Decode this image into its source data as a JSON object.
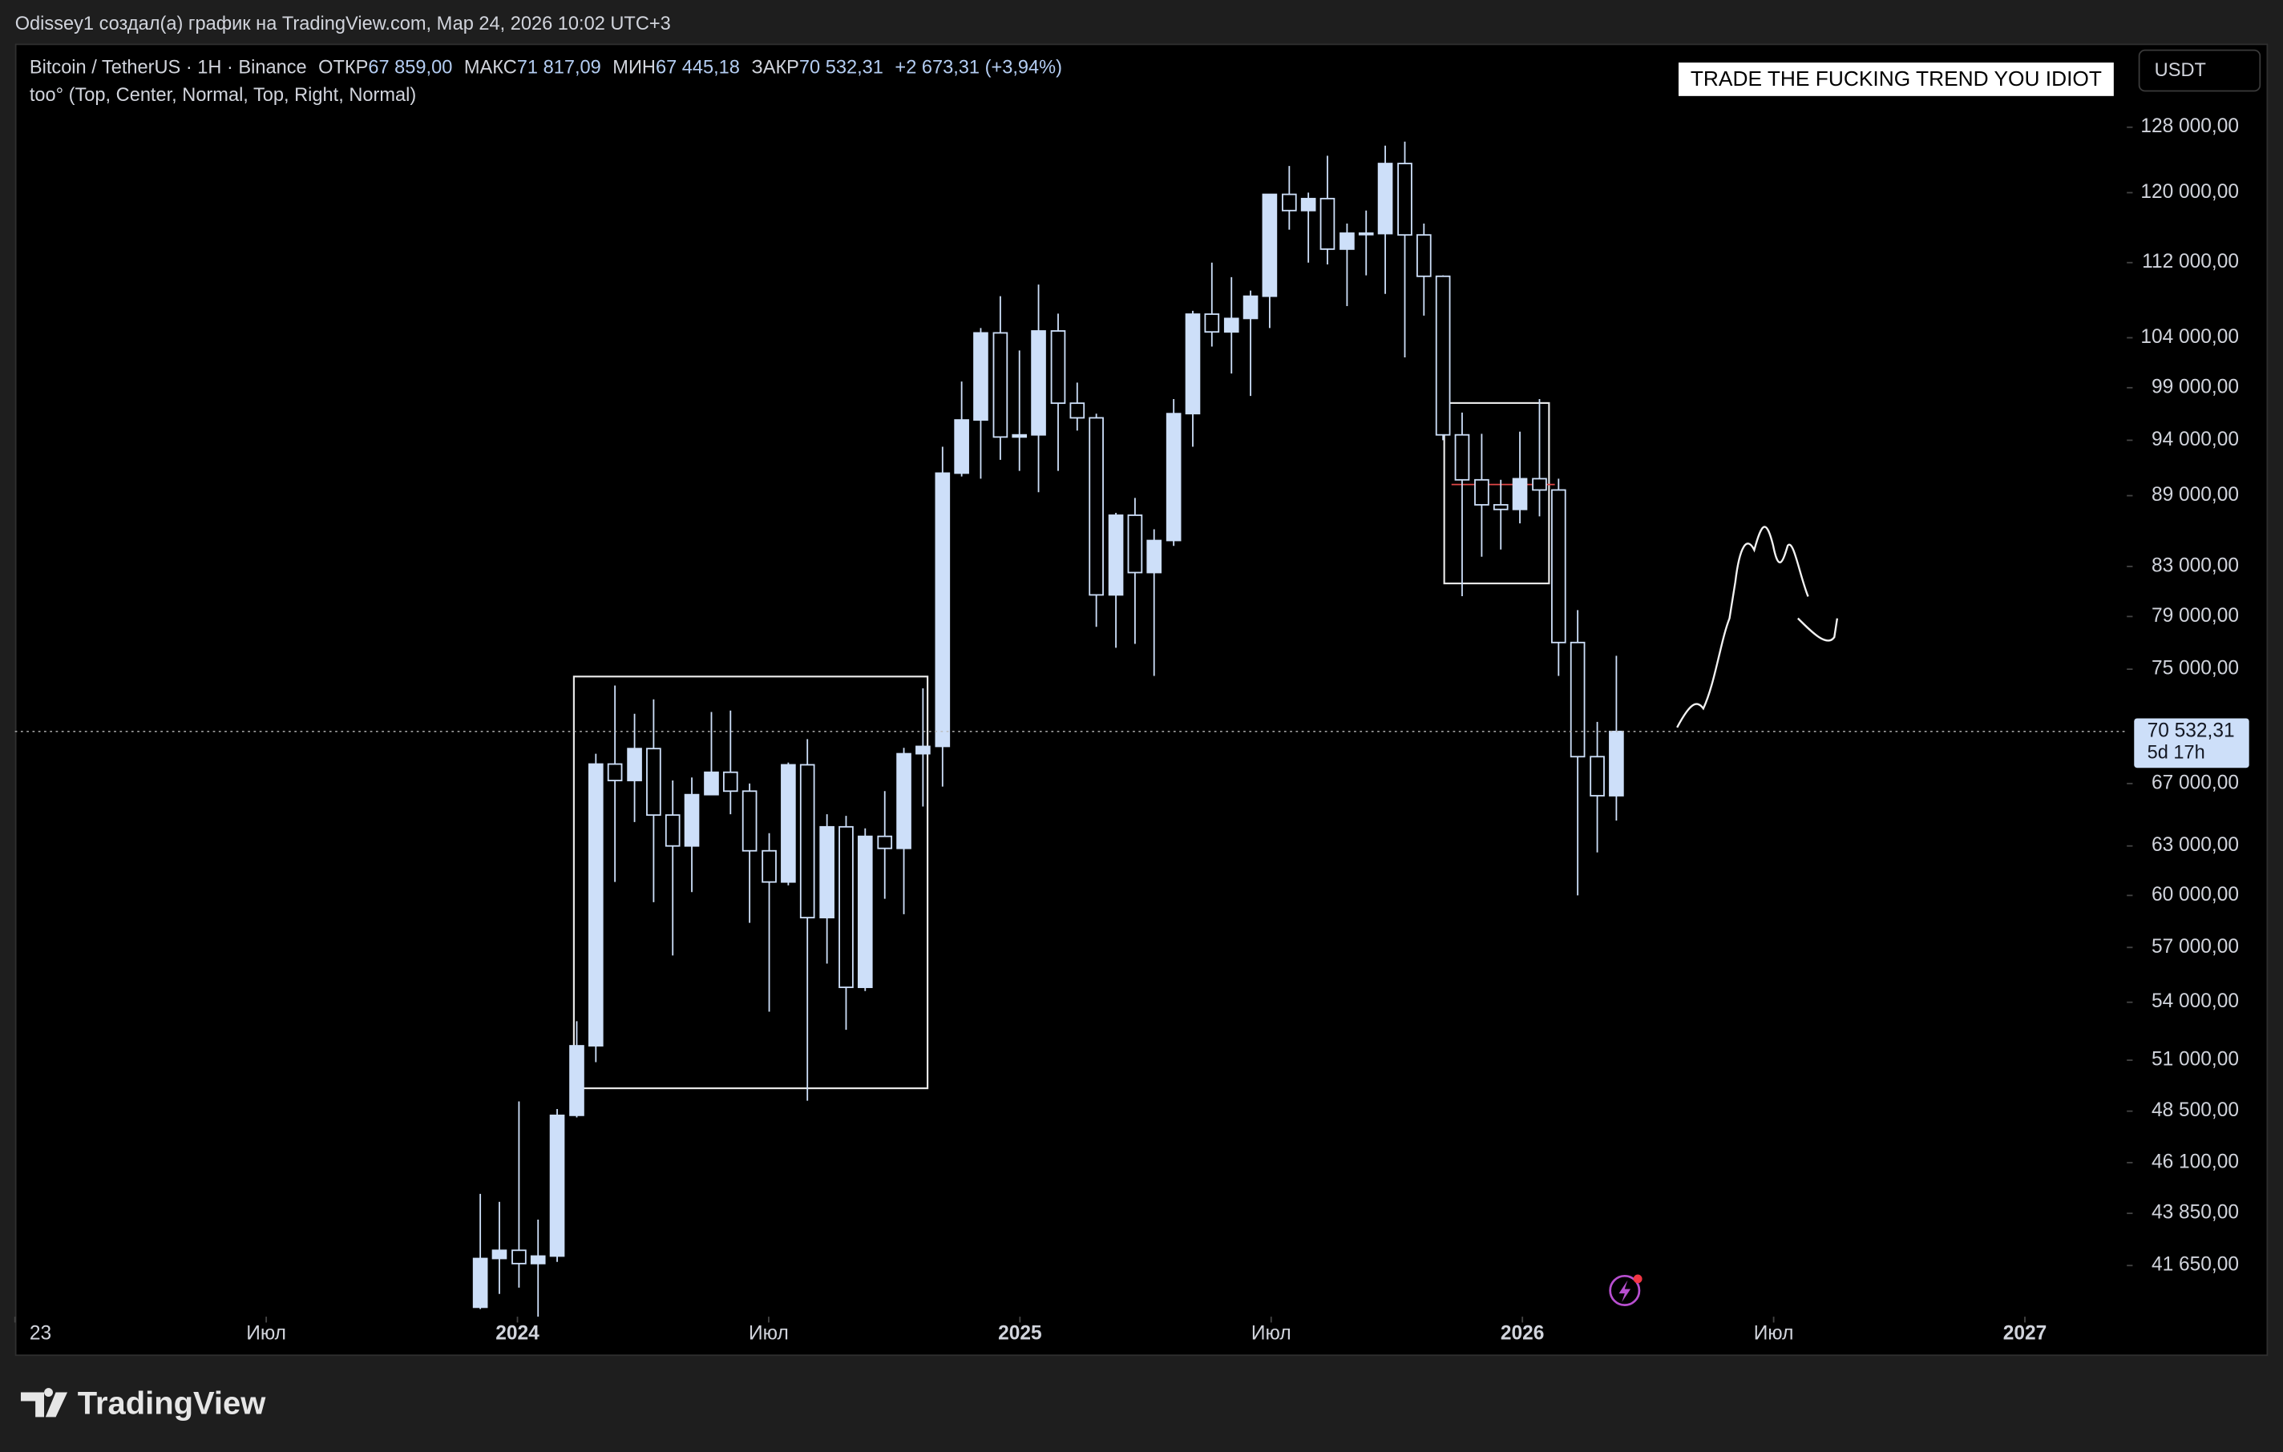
{
  "header": {
    "attribution": "Odissey1 создал(а) график на TradingView.com, Мар 24, 2026 10:02 UTC+3",
    "symbol": "Bitcoin / TetherUS · 1H · Binance",
    "ohlc": [
      {
        "label": "ОТКР",
        "value": "67 859,00"
      },
      {
        "label": "МАКС",
        "value": "71 817,09"
      },
      {
        "label": "МИН",
        "value": "67 445,18"
      },
      {
        "label": "ЗАКР",
        "value": "70 532,31"
      }
    ],
    "change": "+2 673,31 (+3,94%)",
    "indicator": "too° (Top, Center, Normal, Top, Right, Normal)",
    "banner": "TRADE THE FUCKING TREND YOU IDIOT",
    "currency": "USDT"
  },
  "chart_data": {
    "type": "candlestick",
    "color": "#cddff9",
    "log_scale": true,
    "x": [
      2023.926,
      2023.964,
      2024.003,
      2024.041,
      2024.079,
      2024.118,
      2024.156,
      2024.194,
      2024.233,
      2024.271,
      2024.309,
      2024.347,
      2024.386,
      2024.424,
      2024.462,
      2024.501,
      2024.539,
      2024.577,
      2024.616,
      2024.654,
      2024.692,
      2024.731,
      2024.769,
      2024.807,
      2024.846,
      2024.884,
      2024.922,
      2024.961,
      2024.999,
      2025.037,
      2025.076,
      2025.114,
      2025.152,
      2025.191,
      2025.229,
      2025.267,
      2025.306,
      2025.344,
      2025.382,
      2025.421,
      2025.459,
      2025.497,
      2025.536,
      2025.574,
      2025.612,
      2025.651,
      2025.689,
      2025.727,
      2025.766,
      2025.804,
      2025.842,
      2025.88,
      2025.919,
      2025.957,
      2025.995,
      2026.034,
      2026.072,
      2026.11,
      2026.149,
      2026.187
    ],
    "open": [
      39970,
      41940,
      42280,
      41730,
      42040,
      48300,
      51730,
      68300,
      67200,
      69350,
      64950,
      63000,
      66270,
      67750,
      66500,
      62700,
      60800,
      68250,
      58700,
      64200,
      54800,
      63600,
      62850,
      69000,
      69500,
      91000,
      95900,
      104500,
      94300,
      94500,
      104700,
      97500,
      96100,
      80700,
      87300,
      82500,
      85150,
      96500,
      106450,
      104600,
      106000,
      108350,
      119800,
      117900,
      119300,
      113500,
      115300,
      115250,
      123500,
      115100,
      110500,
      94500,
      90400,
      88200,
      87800,
      90500,
      89500,
      77000,
      68800,
      66200
    ],
    "high": [
      44700,
      44350,
      48970,
      43580,
      48600,
      53000,
      69000,
      73800,
      71770,
      72800,
      67200,
      67400,
      71900,
      72000,
      67000,
      63800,
      68400,
      70000,
      65000,
      64900,
      64100,
      66500,
      69400,
      73600,
      93400,
      99600,
      105000,
      108350,
      102700,
      109600,
      106500,
      99500,
      96500,
      87500,
      88800,
      86100,
      97900,
      106800,
      112000,
      110400,
      108950,
      119850,
      123200,
      120000,
      124450,
      116400,
      117900,
      125700,
      126200,
      116400,
      110600,
      96600,
      94600,
      90400,
      94800,
      97900,
      90500,
      79500,
      71200,
      76000
    ],
    "low": [
      39900,
      40500,
      40750,
      38550,
      41800,
      48200,
      50900,
      60800,
      64500,
      59600,
      56550,
      60200,
      66600,
      65000,
      58400,
      53500,
      60600,
      49000,
      56100,
      52550,
      54600,
      59800,
      58900,
      65500,
      66800,
      90700,
      90500,
      92200,
      91200,
      89300,
      91200,
      94900,
      78200,
      76600,
      76900,
      74500,
      84700,
      93400,
      103100,
      100400,
      98200,
      105000,
      115700,
      112000,
      111800,
      107300,
      110600,
      108600,
      102000,
      106300,
      94000,
      80600,
      83800,
      84400,
      86600,
      87200,
      74500,
      60000,
      62600,
      64600
    ],
    "close": [
      41940,
      42280,
      41730,
      42040,
      48300,
      51730,
      68300,
      67200,
      69350,
      64950,
      63000,
      66270,
      67750,
      66500,
      62700,
      60800,
      68250,
      58700,
      64200,
      54800,
      63600,
      62850,
      69000,
      69500,
      91000,
      95900,
      104500,
      94300,
      94500,
      104700,
      97500,
      96100,
      80700,
      87300,
      82500,
      85150,
      96500,
      106450,
      104600,
      106000,
      108350,
      119800,
      117900,
      119300,
      113500,
      115300,
      115250,
      123500,
      115100,
      110500,
      94500,
      90400,
      88200,
      87800,
      90500,
      89500,
      77000,
      68800,
      66200,
      70532.31
    ],
    "xlim": [
      2023,
      2027.2
    ],
    "xticks": [
      {
        "value": 2023,
        "label": "23"
      },
      {
        "value": 2023.5,
        "label": "Июл"
      },
      2024,
      {
        "value": 2024.5,
        "label": "Июл"
      },
      2025,
      {
        "value": 2025.5,
        "label": "Июл"
      },
      2026,
      {
        "value": 2026.5,
        "label": "Июл"
      },
      2027
    ],
    "ylim": [
      39600,
      139000
    ],
    "yticks": [
      {
        "value": 128000,
        "label": "128 000,00"
      },
      {
        "value": 120000,
        "label": "120 000,00"
      },
      {
        "value": 112000,
        "label": "112 000,00"
      },
      {
        "value": 104000,
        "label": "104 000,00"
      },
      {
        "value": 99000,
        "label": "99 000,00"
      },
      {
        "value": 94000,
        "label": "94 000,00"
      },
      {
        "value": 89000,
        "label": "89 000,00"
      },
      {
        "value": 83000,
        "label": "83 000,00"
      },
      {
        "value": 79000,
        "label": "79 000,00"
      },
      {
        "value": 75000,
        "label": "75 000,00"
      },
      {
        "value": 67000,
        "label": "67 000,00"
      },
      {
        "value": 63000,
        "label": "63 000,00"
      },
      {
        "value": 60000,
        "label": "60 000,00"
      },
      {
        "value": 57000,
        "label": "57 000,00"
      },
      {
        "value": 54000,
        "label": "54 000,00"
      },
      {
        "value": 51000,
        "label": "51 000,00"
      },
      {
        "value": 48500,
        "label": "48 500,00"
      },
      {
        "value": 46100,
        "label": "46 100,00"
      },
      {
        "value": 43850,
        "label": "43 850,00"
      },
      {
        "value": 41650,
        "label": "41 650,00"
      }
    ],
    "last_price": {
      "value": 70532.31,
      "label": "70 532,31"
    },
    "countdown": "5d 17h"
  },
  "footer": {
    "brand": "TradingView"
  }
}
